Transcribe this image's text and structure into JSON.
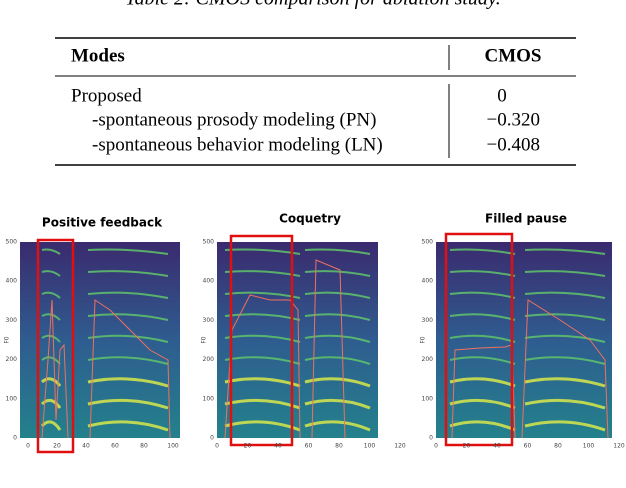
{
  "table": {
    "caption": "Table 2: CMOS comparison for ablation study.",
    "header": [
      "Modes",
      "CMOS"
    ],
    "rows": [
      [
        "Proposed",
        "0"
      ],
      [
        "-spontaneous prosody modeling (PN)",
        "−0.320"
      ],
      [
        "-spontaneous behavior modeling (LN)",
        "−0.408"
      ]
    ]
  },
  "figures": {
    "panels": [
      {
        "title": "Positive feedback",
        "ylabel": "F0",
        "yticks": [
          "0",
          "100",
          "200",
          "300",
          "400",
          "500"
        ],
        "xticks": [
          "0",
          "20",
          "40",
          "60",
          "80",
          "100"
        ]
      },
      {
        "title": "Coquetry",
        "ylabel": "F0",
        "yticks": [
          "0",
          "100",
          "200",
          "300",
          "400",
          "500"
        ],
        "xticks": [
          "0",
          "20",
          "40",
          "60",
          "80",
          "100",
          "120"
        ]
      },
      {
        "title": "Filled pause",
        "ylabel": "F0",
        "yticks": [
          "0",
          "100",
          "200",
          "300",
          "400",
          "500"
        ],
        "xticks": [
          "0",
          "20",
          "40",
          "60",
          "80",
          "100",
          "120"
        ]
      }
    ]
  }
}
